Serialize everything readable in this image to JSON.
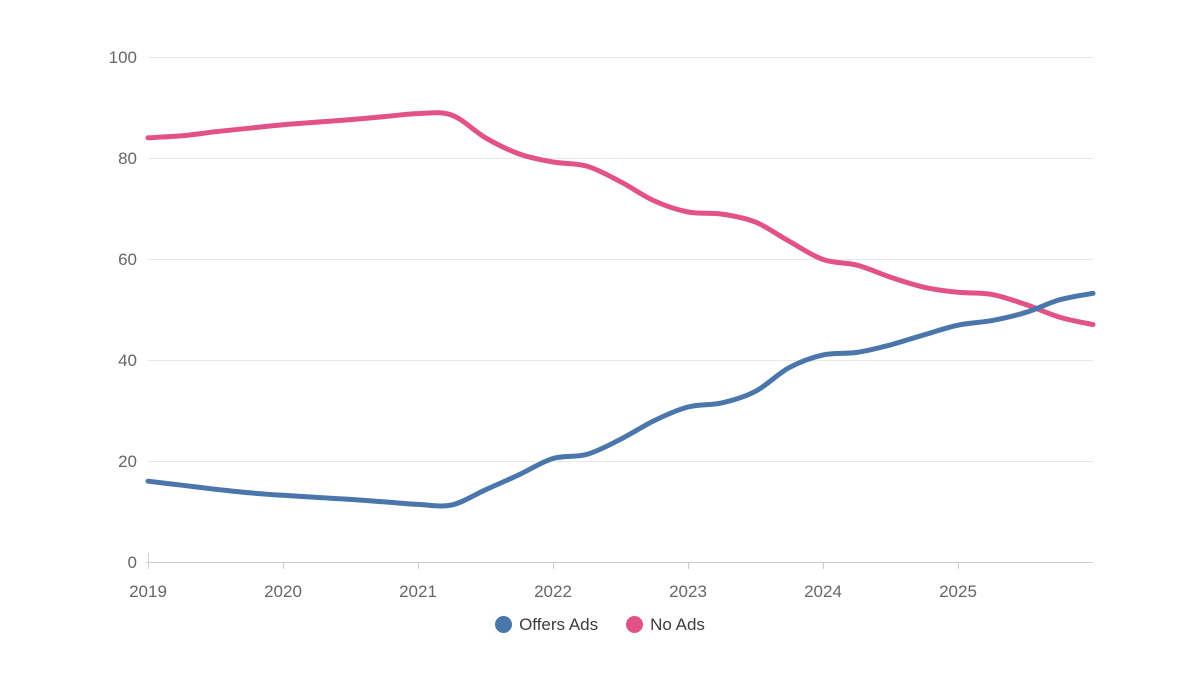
{
  "page": {
    "background": "#ffffff"
  },
  "chart_data": {
    "type": "line",
    "title": "",
    "xlabel": "",
    "ylabel": "",
    "x": [
      2019,
      2019.25,
      2019.5,
      2019.75,
      2020,
      2020.25,
      2020.5,
      2020.75,
      2021,
      2021.25,
      2021.5,
      2021.75,
      2022,
      2022.25,
      2022.5,
      2022.75,
      2023,
      2023.25,
      2023.5,
      2023.75,
      2024,
      2024.25,
      2024.5,
      2024.75,
      2025,
      2025.25,
      2025.5,
      2025.75,
      2026
    ],
    "series": [
      {
        "name": "Offers Ads",
        "color": "#4a76ac",
        "values": [
          16,
          15.2,
          14.4,
          13.7,
          13.2,
          12.8,
          12.4,
          11.9,
          11.4,
          11.3,
          14.3,
          17.3,
          20.5,
          21.3,
          24.3,
          28,
          30.7,
          31.5,
          33.8,
          38.5,
          41,
          41.5,
          43,
          45,
          46.9,
          47.8,
          49.4,
          51.9,
          53.2
        ]
      },
      {
        "name": "No Ads",
        "color": "#e25286",
        "values": [
          84,
          84.4,
          85.2,
          85.9,
          86.6,
          87.1,
          87.6,
          88.2,
          88.8,
          88.5,
          84,
          80.8,
          79.2,
          78.4,
          75.3,
          71.5,
          69.3,
          68.9,
          67.3,
          63.5,
          59.9,
          58.8,
          56.4,
          54.4,
          53.4,
          53,
          51,
          48.5,
          47
        ]
      }
    ],
    "xlim": [
      2019,
      2026
    ],
    "ylim": [
      0,
      100
    ],
    "x_ticks": [
      2019,
      2020,
      2021,
      2022,
      2023,
      2024,
      2025
    ],
    "y_ticks": [
      0,
      20,
      40,
      60,
      80,
      100
    ],
    "grid": "horizontal-only",
    "legend_position": "bottom-center",
    "axis_color": "#cccccc",
    "grid_color": "#e8e8e8",
    "tick_label_color": "#666666",
    "line_width": 5
  }
}
